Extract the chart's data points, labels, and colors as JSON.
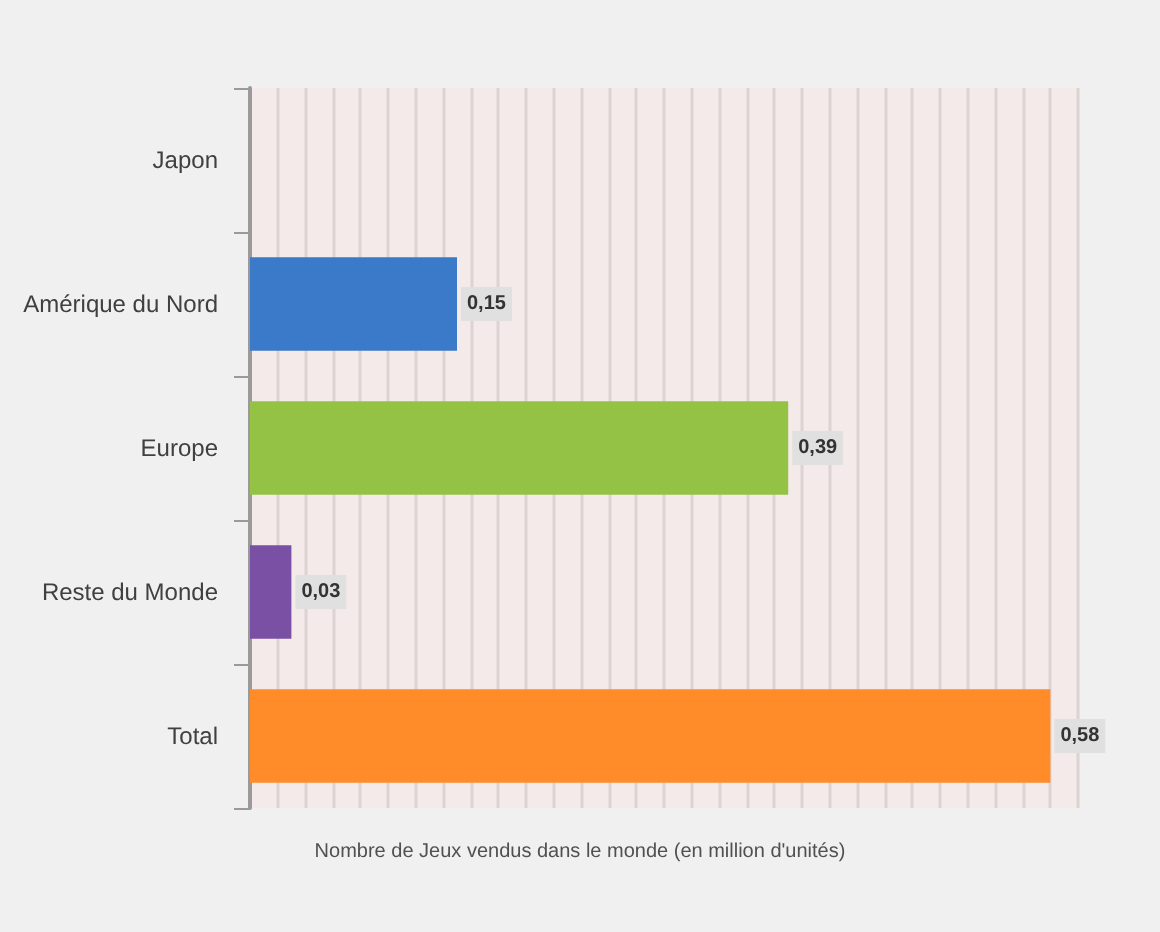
{
  "chart_data": {
    "type": "bar",
    "orientation": "horizontal",
    "categories": [
      "Japon",
      "Amérique du Nord",
      "Europe",
      "Reste du Monde",
      "Total"
    ],
    "values": [
      0,
      0.15,
      0.39,
      0.03,
      0.58
    ],
    "value_labels": [
      null,
      "0,15",
      "0,39",
      "0,03",
      "0,58"
    ],
    "colors": [
      "#5c1a1c",
      "#3a7ac8",
      "#94c244",
      "#7a50a4",
      "#ff8c28"
    ],
    "xlabel": "Nombre de Jeux vendus dans le monde (en million d'unités)",
    "xlim": [
      0,
      0.6
    ],
    "xticks": [
      {
        "value": 0,
        "label": null
      },
      {
        "value": 0.02,
        "label": null
      },
      {
        "value": 0.04,
        "label": null
      },
      {
        "value": 0.06,
        "label": null
      },
      {
        "value": 0.08,
        "label": null
      },
      {
        "value": 0.1,
        "label": null
      },
      {
        "value": 0.12,
        "label": null
      },
      {
        "value": 0.14,
        "label": null
      },
      {
        "value": 0.16,
        "label": null
      },
      {
        "value": 0.18,
        "label": null
      },
      {
        "value": 0.2,
        "label": null
      },
      {
        "value": 0.22,
        "label": null
      },
      {
        "value": 0.24,
        "label": null
      },
      {
        "value": 0.26,
        "label": null
      },
      {
        "value": 0.28,
        "label": null
      },
      {
        "value": 0.3,
        "label": null
      },
      {
        "value": 0.32,
        "label": null
      },
      {
        "value": 0.34,
        "label": null
      },
      {
        "value": 0.36,
        "label": null
      },
      {
        "value": 0.38,
        "label": null
      },
      {
        "value": 0.4,
        "label": null
      },
      {
        "value": 0.42,
        "label": null
      },
      {
        "value": 0.44,
        "label": null
      },
      {
        "value": 0.46,
        "label": null
      },
      {
        "value": 0.48,
        "label": null
      },
      {
        "value": 0.5,
        "label": null
      },
      {
        "value": 0.52,
        "label": null
      },
      {
        "value": 0.54,
        "label": null
      },
      {
        "value": 0.56,
        "label": null
      },
      {
        "value": 0.58,
        "label": null
      },
      {
        "value": 0.6,
        "label": null
      }
    ],
    "grid": "x",
    "tick_labels": "y"
  }
}
